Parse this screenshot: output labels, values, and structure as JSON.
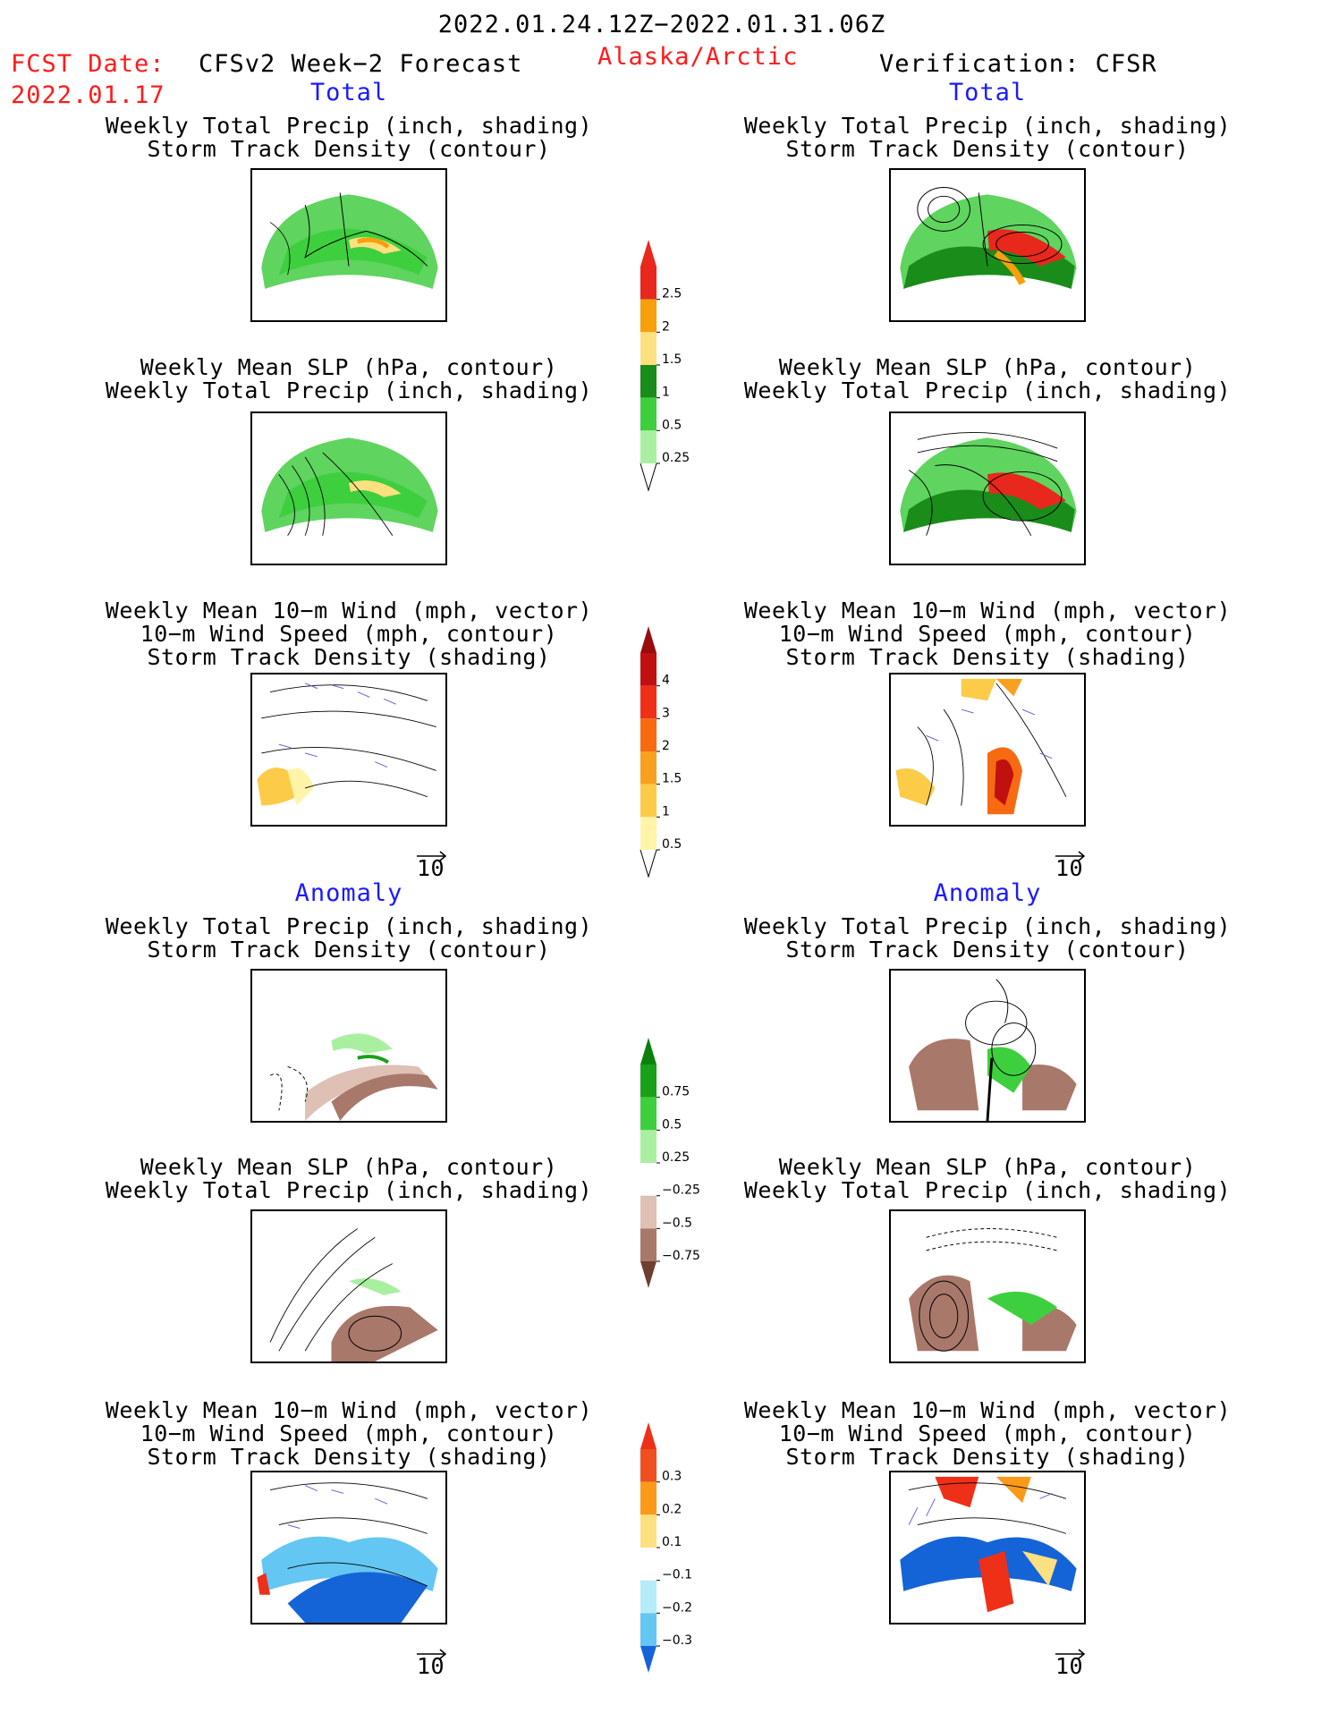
{
  "header": {
    "period": "2022.01.24.12Z−2022.01.31.06Z",
    "fcst_date_label": "FCST Date:",
    "fcst_date": "2022.01.17",
    "model": "CFSv2 Week−2 Forecast",
    "region": "Alaska/Arctic",
    "verification": "Verification: CFSR"
  },
  "sections": {
    "total": "Total",
    "anomaly": "Anomaly"
  },
  "titles": {
    "precip_storm": [
      "Weekly Total Precip (inch, shading)",
      "Storm Track Density (contour)"
    ],
    "slp_precip": [
      "Weekly Mean SLP (hPa, contour)",
      "Weekly Total Precip (inch, shading)"
    ],
    "wind_storm": [
      "Weekly Mean 10−m Wind (mph, vector)",
      "10−m Wind Speed (mph, contour)",
      "Storm Track Density (shading)"
    ]
  },
  "vector_ref": "10",
  "colorbars": [
    {
      "name": "total-precip",
      "labels": [
        "2.5",
        "2",
        "1.5",
        "1",
        "0.5",
        "0.25"
      ],
      "colors": [
        "#e8281c",
        "#f5a00c",
        "#fde080",
        "#1a8c1a",
        "#3ecf3e",
        "#a8f0a0"
      ],
      "top": "#e8281c"
    },
    {
      "name": "total-storm-density",
      "labels": [
        "4",
        "3",
        "2",
        "1.5",
        "1",
        "0.5"
      ],
      "colors": [
        "#c01010",
        "#ee3018",
        "#f86a12",
        "#f8a020",
        "#fccb48",
        "#fff4a8"
      ],
      "top": "#9a0c0c"
    },
    {
      "name": "anomaly-precip",
      "labels": [
        "0.75",
        "0.5",
        "0.25",
        "−0.25",
        "−0.5",
        "−0.75"
      ],
      "colors": [
        "#1aa01a",
        "#3ecf3e",
        "#a8f0a0",
        "#ffffff",
        "#dec0b4",
        "#a8786a"
      ],
      "top": "#0c800c",
      "bottom": "#6e4030"
    },
    {
      "name": "anomaly-storm-density",
      "labels": [
        "0.3",
        "0.2",
        "0.1",
        "−0.1",
        "−0.2",
        "−0.3"
      ],
      "colors": [
        "#f05020",
        "#fa9a18",
        "#fde080",
        "#ffffff",
        "#b4ecf8",
        "#64c6f2"
      ],
      "top": "#ee3018",
      "bottom": "#1464d8"
    }
  ]
}
